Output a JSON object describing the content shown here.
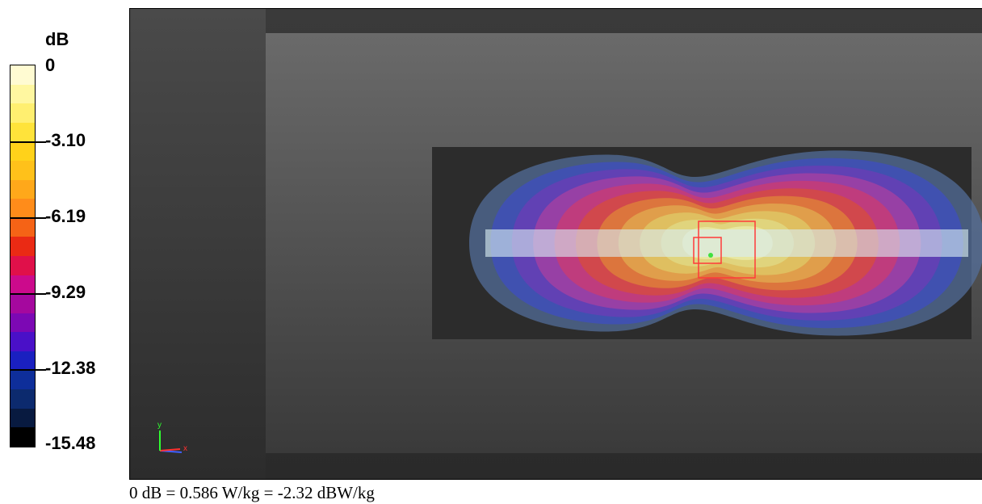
{
  "chart_data": {
    "type": "heatmap",
    "colorbar": {
      "unit": "dB",
      "ticks": [
        "0",
        "-3.10",
        "-6.19",
        "-9.29",
        "-12.38",
        "-15.48"
      ],
      "tick_values": [
        0,
        -3.1,
        -6.19,
        -9.29,
        -12.38,
        -15.48
      ],
      "range": [
        -15.48,
        0
      ],
      "colors": [
        "#fffbd2",
        "#fff7a0",
        "#ffef70",
        "#ffe33a",
        "#ffd21a",
        "#ffc11a",
        "#ffa81a",
        "#ff8c1a",
        "#f56316",
        "#ea2a14",
        "#e0104a",
        "#cc0a8c",
        "#a5089e",
        "#7c08b4",
        "#4a10c8",
        "#1a20c0",
        "#0e2e9a",
        "#0c2a6e",
        "#081a40",
        "#000000"
      ]
    },
    "field_colors": [
      "#5470a0",
      "#4050b4",
      "#6440b4",
      "#9c40a4",
      "#c23c7a",
      "#d24a48",
      "#dc7a3c",
      "#dfa24c",
      "#dec262",
      "#e0d680",
      "#e8e8a4"
    ],
    "axes_triad": {
      "x_label": "x",
      "y_label": "y",
      "x_color": "#ff3030",
      "y_color": "#30ff30",
      "z_color": "#4060ff"
    },
    "footnote": "0 dB = 0.586 W/kg = -2.32 dBW/kg"
  }
}
